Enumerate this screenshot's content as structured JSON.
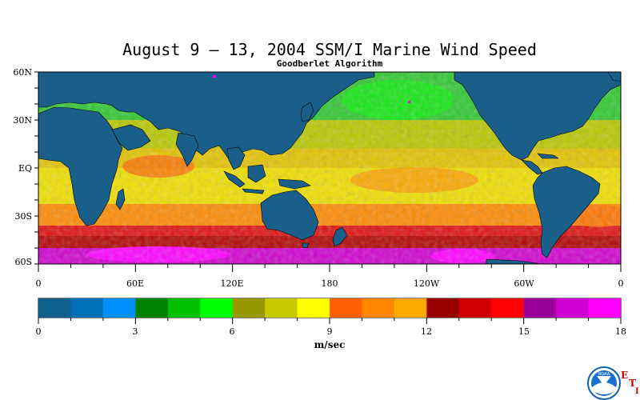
{
  "title": "August 9 – 13, 2004 SSM/I Marine Wind Speed",
  "subtitle": "Goodberlet Algorithm",
  "map": {
    "lat_labels": [
      "60N",
      "30N",
      "EQ",
      "30S",
      "60S"
    ],
    "lon_labels": [
      "0",
      "60E",
      "120E",
      "180",
      "120W",
      "60W",
      "0"
    ]
  },
  "colorbar": {
    "unit": "m/sec",
    "tick_labels": [
      "0",
      "3",
      "6",
      "9",
      "12",
      "15",
      "18"
    ],
    "min": 0,
    "max": 18,
    "colors": [
      "#0e5f8c",
      "#0070b8",
      "#0090ff",
      "#008000",
      "#00c000",
      "#00ff00",
      "#989800",
      "#c8c800",
      "#ffff00",
      "#ff6000",
      "#ff8800",
      "#ffa800",
      "#980000",
      "#d00000",
      "#ff0000",
      "#980098",
      "#d000d0",
      "#ff00ff"
    ]
  },
  "land_color": "#1a5f8a",
  "logo": {
    "text": "NOAA",
    "mark": "E T I"
  }
}
